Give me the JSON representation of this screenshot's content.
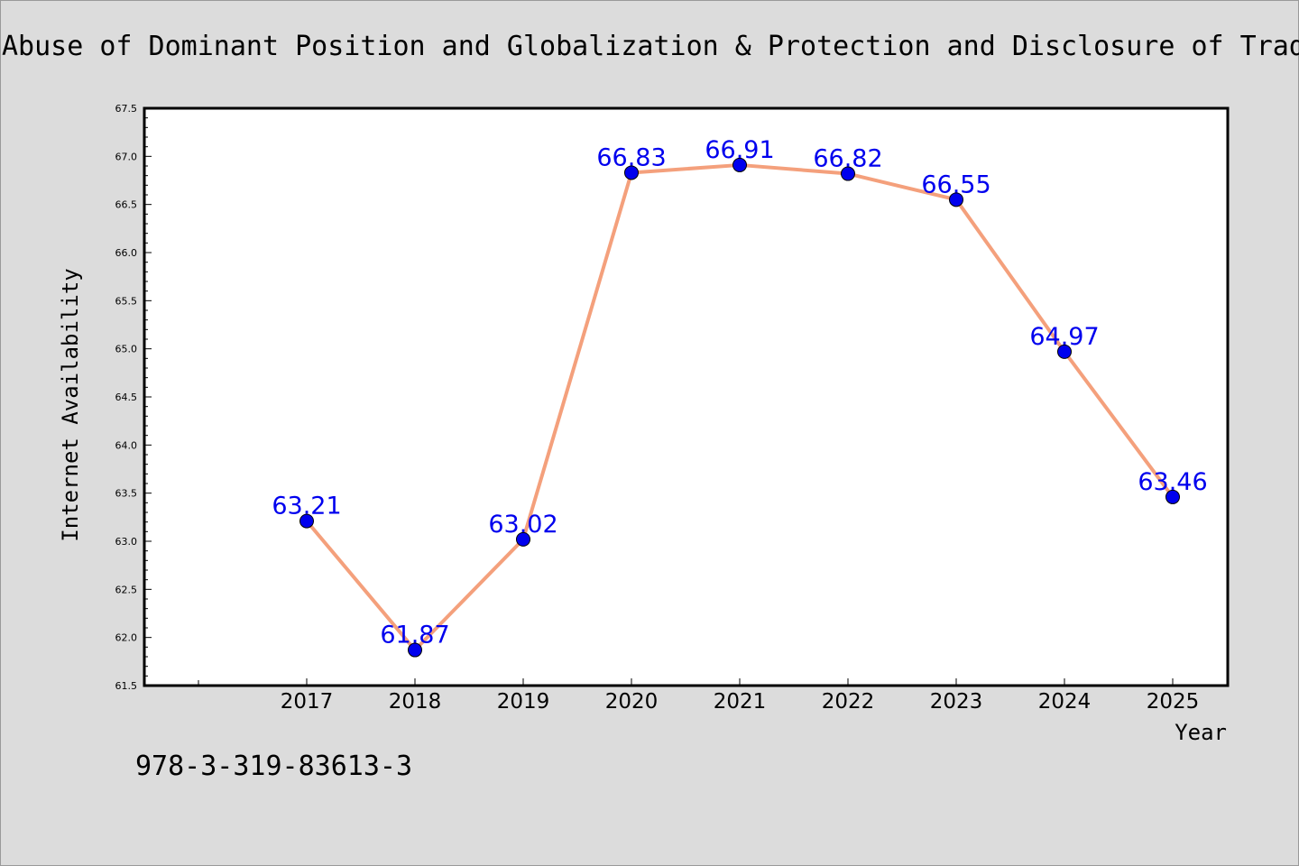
{
  "chart_data": {
    "type": "line",
    "title": "Abuse of Dominant Position and Globalization & Protection and Disclosure of Trade Secrets",
    "xlabel": "Year",
    "ylabel": "Internet Availability",
    "x": [
      "2017",
      "2018",
      "2019",
      "2020",
      "2021",
      "2022",
      "2023",
      "2024",
      "2025"
    ],
    "series": [
      {
        "values": [
          63.21,
          61.87,
          63.02,
          66.83,
          66.91,
          66.82,
          66.55,
          64.97,
          63.46
        ],
        "data_labels": [
          "63.21",
          "61.87",
          "63.02",
          "66.83",
          "66.91",
          "66.82",
          "66.55",
          "64.97",
          "63.46"
        ],
        "line_color": "#f4a07c",
        "marker_color": "#0000ee"
      }
    ],
    "ylim": [
      61.5,
      67.5
    ],
    "yticks": [
      "61.5",
      "62.0",
      "62.5",
      "63.0",
      "63.5",
      "64.0",
      "64.5",
      "65.0",
      "65.5",
      "66.0",
      "66.5",
      "67.0",
      "67.5"
    ],
    "grid": false,
    "legend": "none",
    "label_color": "#0000ee"
  },
  "footer": {
    "isbn": "978-3-319-83613-3"
  }
}
